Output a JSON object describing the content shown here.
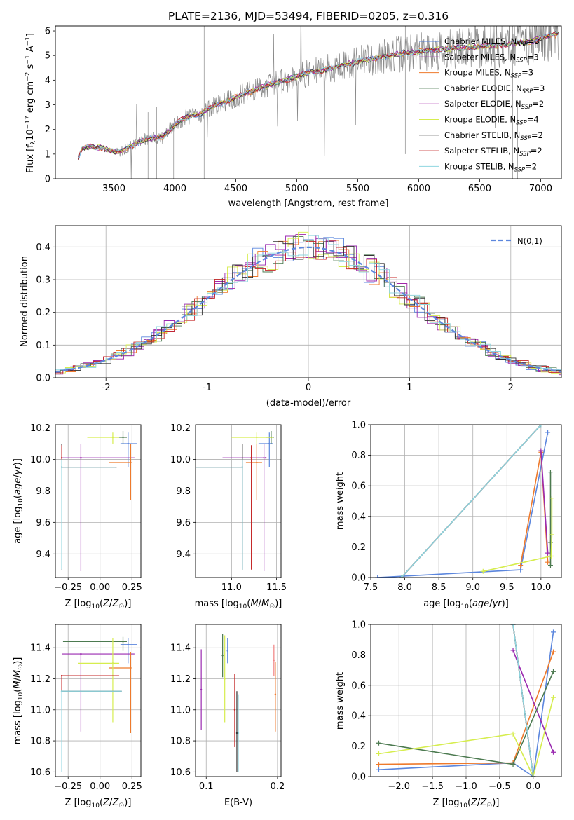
{
  "figure": {
    "title": "PLATE=2136, MJD=53494, FIBERID=0205, z=0.316"
  },
  "series_colors": {
    "Chabrier MILES": "#5b86dd",
    "Salpeter MILES": "#9a2ab0",
    "Kroupa MILES": "#ee7a2c",
    "Chabrier ELODIE": "#4c7a50",
    "Salpeter ELODIE": "#a127a8",
    "Kroupa ELODIE": "#d6ed4e",
    "Chabrier STELIB": "#333333",
    "Salpeter STELIB": "#c42626",
    "Kroupa STELIB": "#8fd6e0",
    "data": "#8a8a8a"
  },
  "chart_data": [
    {
      "type": "line",
      "xlabel": "wavelength [Angstrom, rest frame]",
      "ylabel": "Flux [f_λ 10^-17 erg cm^-2 s^-1 A^-1]",
      "xlim": [
        3020,
        7170
      ],
      "ylim": [
        0,
        6.2
      ],
      "xticks": [
        3500,
        4000,
        4500,
        5000,
        5500,
        6000,
        6500,
        7000
      ],
      "yticks": [
        0,
        1,
        2,
        3,
        4,
        5,
        6
      ],
      "grid": false,
      "legend_position": "top-right",
      "legend": [
        {
          "label": "Chabrier MILES, N",
          "sub": "SSP",
          "tail": "=3"
        },
        {
          "label": "Salpeter MILES, N",
          "sub": "SSP",
          "tail": "=3"
        },
        {
          "label": "Kroupa MILES, N",
          "sub": "SSP",
          "tail": "=3"
        },
        {
          "label": "Chabrier ELODIE, N",
          "sub": "SSP",
          "tail": "=3"
        },
        {
          "label": "Salpeter ELODIE, N",
          "sub": "SSP",
          "tail": "=2"
        },
        {
          "label": "Kroupa ELODIE, N",
          "sub": "SSP",
          "tail": "=4"
        },
        {
          "label": "Chabrier STELIB, N",
          "sub": "SSP",
          "tail": "=2"
        },
        {
          "label": "Salpeter STELIB, N",
          "sub": "SSP",
          "tail": "=2"
        },
        {
          "label": "Kroupa STELIB, N",
          "sub": "SSP",
          "tail": "=2"
        }
      ],
      "continuum": {
        "x": [
          3210,
          3240,
          3300,
          3400,
          3500,
          3550,
          3650,
          3750,
          3900,
          4000,
          4100,
          4200,
          4300,
          4500,
          4700,
          4900,
          5100,
          5300,
          5500,
          5700,
          5900,
          6100,
          6300,
          6500,
          6700,
          6900,
          7000,
          7100
        ],
        "y": [
          0.85,
          1.25,
          1.3,
          1.25,
          1.08,
          1.1,
          1.35,
          1.6,
          1.7,
          2.2,
          2.5,
          2.6,
          2.9,
          3.3,
          3.7,
          4.0,
          4.3,
          4.5,
          4.75,
          4.95,
          5.1,
          5.2,
          5.3,
          5.35,
          5.45,
          5.55,
          5.7,
          5.85
        ]
      }
    },
    {
      "type": "line",
      "xlabel": "(data-model)/error",
      "ylabel": "Normed distribution",
      "xlim": [
        -2.5,
        2.5
      ],
      "ylim": [
        0,
        0.465
      ],
      "xticks": [
        -2,
        -1,
        0,
        1,
        2
      ],
      "yticks": [
        0.0,
        0.1,
        0.2,
        0.3,
        0.4
      ],
      "grid": true,
      "legend_position": "top-right",
      "legend": [
        "N(0,1)"
      ],
      "gaussian": {
        "mean": 0,
        "sigma": 1
      },
      "bin_width": 0.1
    },
    {
      "type": "scatter",
      "xlabel": "Z [log10(Z/Z☉)]",
      "ylabel": "age [log10(age/yr)]",
      "xlim": [
        -0.35,
        0.32
      ],
      "ylim": [
        9.25,
        10.22
      ],
      "xticks": [
        -0.25,
        0.0,
        0.25
      ],
      "xticklabels": [
        "−0.25",
        "0.00",
        "0.25"
      ],
      "yticks": [
        9.4,
        9.6,
        9.8,
        10.0,
        10.2
      ],
      "grid": true,
      "points": [
        {
          "c": "#5b86dd",
          "x": 0.22,
          "y": 10.1,
          "xerr": [
            0.06,
            0.07
          ],
          "yerr": [
            0.15,
            0.07
          ]
        },
        {
          "c": "#9a2ab0",
          "x": -0.15,
          "y": 10.01,
          "xerr": [
            0.15,
            0.42
          ],
          "yerr": [
            0.72,
            0.09
          ]
        },
        {
          "c": "#ee7a2c",
          "x": 0.24,
          "y": 9.98,
          "xerr": [
            0.17,
            0.0
          ],
          "yerr": [
            0.24,
            0.12
          ]
        },
        {
          "c": "#4c7a50",
          "x": 0.18,
          "y": 10.14,
          "xerr": [
            0.03,
            0.03
          ],
          "yerr": [
            0.04,
            0.04
          ]
        },
        {
          "c": "#a127a8",
          "x": -0.15,
          "y": 10.01,
          "xerr": [
            0.0,
            0.0
          ],
          "yerr": [
            0.0,
            0.0
          ]
        },
        {
          "c": "#d6ed4e",
          "x": 0.1,
          "y": 10.14,
          "xerr": [
            0.2,
            0.05
          ],
          "yerr": [
            0.04,
            0.03
          ]
        },
        {
          "c": "#333333",
          "x": -0.3,
          "y": 9.95,
          "xerr": [
            0.0,
            0.43
          ],
          "yerr": [
            0.65,
            0.15
          ]
        },
        {
          "c": "#c42626",
          "x": -0.3,
          "y": 10.01,
          "xerr": [
            0.0,
            0.0
          ],
          "yerr": [
            0.71,
            0.08
          ]
        },
        {
          "c": "#8fd6e0",
          "x": -0.3,
          "y": 9.95,
          "xerr": [
            0.0,
            0.42
          ],
          "yerr": [
            0.65,
            0.05
          ]
        }
      ]
    },
    {
      "type": "scatter",
      "xlabel": "mass [log10(M/M☉)]",
      "ylabel": "",
      "xlim": [
        10.6,
        11.55
      ],
      "ylim": [
        9.25,
        10.22
      ],
      "xticks": [
        11.0,
        11.5
      ],
      "xticklabels": [
        "11.0",
        "11.5"
      ],
      "yticks": [
        9.4,
        9.6,
        9.8,
        10.0,
        10.2
      ],
      "grid": true,
      "points": [
        {
          "c": "#5b86dd",
          "x": 11.42,
          "y": 10.1,
          "xerr": [
            0.12,
            0.04
          ],
          "yerr": [
            0.15,
            0.07
          ]
        },
        {
          "c": "#9a2ab0",
          "x": 11.36,
          "y": 10.01,
          "xerr": [
            0.46,
            0.0
          ],
          "yerr": [
            0.72,
            0.09
          ]
        },
        {
          "c": "#ee7a2c",
          "x": 11.28,
          "y": 9.98,
          "xerr": [
            0.12,
            0.06
          ],
          "yerr": [
            0.24,
            0.12
          ]
        },
        {
          "c": "#4c7a50",
          "x": 11.44,
          "y": 10.14,
          "xerr": [
            0.06,
            0.03
          ],
          "yerr": [
            0.04,
            0.04
          ]
        },
        {
          "c": "#a127a8",
          "x": 11.38,
          "y": 10.01,
          "xerr": [
            0.0,
            0.0
          ],
          "yerr": [
            0.0,
            0.0
          ]
        },
        {
          "c": "#d6ed4e",
          "x": 11.28,
          "y": 10.14,
          "xerr": [
            0.28,
            0.18
          ],
          "yerr": [
            0.04,
            0.03
          ]
        },
        {
          "c": "#333333",
          "x": 11.12,
          "y": 9.95,
          "xerr": [
            0.52,
            0.0
          ],
          "yerr": [
            0.65,
            0.15
          ]
        },
        {
          "c": "#c42626",
          "x": 11.22,
          "y": 10.01,
          "xerr": [
            0.0,
            0.0
          ],
          "yerr": [
            0.71,
            0.08
          ]
        },
        {
          "c": "#8fd6e0",
          "x": 11.12,
          "y": 9.95,
          "xerr": [
            0.52,
            0.0
          ],
          "yerr": [
            0.65,
            0.05
          ]
        }
      ]
    },
    {
      "type": "line",
      "xlabel": "age [log10(age/yr)]",
      "ylabel": "mass weight",
      "xlim": [
        7.5,
        10.3
      ],
      "ylim": [
        0,
        1
      ],
      "xticks": [
        7.5,
        8.0,
        8.5,
        9.0,
        9.5,
        10.0
      ],
      "yticks": [
        0.0,
        0.2,
        0.4,
        0.6,
        0.8,
        1.0
      ],
      "grid": true,
      "series": [
        {
          "c": "#5b86dd",
          "x": [
            7.6,
            9.7,
            10.1
          ],
          "y": [
            0.0,
            0.05,
            0.95
          ]
        },
        {
          "c": "#ee7a2c",
          "x": [
            9.7,
            10.0,
            10.1
          ],
          "y": [
            0.08,
            0.82,
            0.1
          ]
        },
        {
          "c": "#9a2ab0",
          "x": [
            10.0,
            10.1
          ],
          "y": [
            0.83,
            0.16
          ]
        },
        {
          "c": "#4c7a50",
          "x": [
            10.14,
            10.14,
            10.14
          ],
          "y": [
            0.69,
            0.23,
            0.08
          ]
        },
        {
          "c": "#d6ed4e",
          "x": [
            9.15,
            10.15,
            10.16,
            10.16
          ],
          "y": [
            0.04,
            0.14,
            0.28,
            0.52
          ]
        },
        {
          "c": "#c42626",
          "x": [
            7.95,
            10.0
          ],
          "y": [
            0.0,
            1.0
          ]
        },
        {
          "c": "#333333",
          "x": [
            7.95,
            10.0
          ],
          "y": [
            0.0,
            1.0
          ]
        },
        {
          "c": "#8fd6e0",
          "x": [
            7.95,
            10.0
          ],
          "y": [
            0.0,
            1.0
          ]
        }
      ]
    },
    {
      "type": "scatter",
      "xlabel": "Z [log10(Z/Z☉)]",
      "ylabel": "mass [log10(M/M☉)]",
      "xlim": [
        -0.35,
        0.32
      ],
      "ylim": [
        10.57,
        11.55
      ],
      "xticks": [
        -0.25,
        0.0,
        0.25
      ],
      "xticklabels": [
        "−0.25",
        "0.00",
        "0.25"
      ],
      "yticks": [
        10.6,
        10.8,
        11.0,
        11.2,
        11.4
      ],
      "grid": true,
      "points": [
        {
          "c": "#5b86dd",
          "x": 0.22,
          "y": 11.42,
          "xerr": [
            0.06,
            0.07
          ],
          "yerr": [
            0.12,
            0.04
          ]
        },
        {
          "c": "#9a2ab0",
          "x": -0.15,
          "y": 11.36,
          "xerr": [
            0.15,
            0.42
          ],
          "yerr": [
            0.5,
            0.0
          ]
        },
        {
          "c": "#ee7a2c",
          "x": 0.24,
          "y": 11.27,
          "xerr": [
            0.17,
            0.0
          ],
          "yerr": [
            0.42,
            0.1
          ]
        },
        {
          "c": "#4c7a50",
          "x": 0.18,
          "y": 11.44,
          "xerr": [
            0.47,
            0.03
          ],
          "yerr": [
            0.06,
            0.03
          ]
        },
        {
          "c": "#d6ed4e",
          "x": 0.1,
          "y": 11.3,
          "xerr": [
            0.27,
            0.05
          ],
          "yerr": [
            0.38,
            0.16
          ]
        },
        {
          "c": "#333333",
          "x": -0.3,
          "y": 11.12,
          "xerr": [
            0.0,
            0.47
          ],
          "yerr": [
            0.52,
            0.0
          ]
        },
        {
          "c": "#c42626",
          "x": -0.3,
          "y": 11.22,
          "xerr": [
            0.0,
            0.45
          ],
          "yerr": [
            0.6,
            0.0
          ]
        },
        {
          "c": "#8fd6e0",
          "x": -0.3,
          "y": 11.12,
          "xerr": [
            0.0,
            0.47
          ],
          "yerr": [
            0.52,
            0.0
          ]
        }
      ]
    },
    {
      "type": "scatter",
      "xlabel": "E(B-V)",
      "ylabel": "",
      "xlim": [
        0.085,
        0.205
      ],
      "ylim": [
        10.57,
        11.55
      ],
      "xticks": [
        0.1,
        0.2
      ],
      "xticklabels": [
        "0.1",
        "0.2"
      ],
      "yticks": [
        10.6,
        10.8,
        11.0,
        11.2,
        11.4
      ],
      "grid": true,
      "points": [
        {
          "c": "#5b86dd",
          "x": 0.13,
          "y": 11.38,
          "xerr": [
            0,
            0
          ],
          "yerr": [
            0.08,
            0.08
          ]
        },
        {
          "c": "#9a2ab0",
          "x": 0.093,
          "y": 11.13,
          "xerr": [
            0,
            0
          ],
          "yerr": [
            0.26,
            0.26
          ]
        },
        {
          "c": "#ee7a2c",
          "x": 0.197,
          "y": 11.1,
          "xerr": [
            0,
            0
          ],
          "yerr": [
            0.24,
            0.21
          ]
        },
        {
          "c": "#4c7a50",
          "x": 0.123,
          "y": 11.35,
          "xerr": [
            0,
            0
          ],
          "yerr": [
            0.14,
            0.14
          ]
        },
        {
          "c": "#d6ed4e",
          "x": 0.126,
          "y": 11.2,
          "xerr": [
            0,
            0
          ],
          "yerr": [
            0.28,
            0.28
          ]
        },
        {
          "c": "#333333",
          "x": 0.143,
          "y": 10.85,
          "xerr": [
            0,
            0
          ],
          "yerr": [
            0.25,
            0.27
          ]
        },
        {
          "c": "#c42626",
          "x": 0.14,
          "y": 11.0,
          "xerr": [
            0,
            0
          ],
          "yerr": [
            0.24,
            0.23
          ]
        },
        {
          "c": "#8fd6e0",
          "x": 0.145,
          "y": 10.85,
          "xerr": [
            0,
            0
          ],
          "yerr": [
            0.25,
            0.25
          ]
        },
        {
          "c": "#f08080",
          "x": 0.195,
          "y": 11.32,
          "xerr": [
            0,
            0
          ],
          "yerr": [
            0.1,
            0.1
          ]
        }
      ]
    },
    {
      "type": "line",
      "xlabel": "Z [log10(Z/Z☉)]",
      "ylabel": "mass weight",
      "xlim": [
        -2.42,
        0.42
      ],
      "ylim": [
        0,
        1
      ],
      "xticks": [
        -2.0,
        -1.5,
        -1.0,
        -0.5,
        0.0
      ],
      "xticklabels": [
        "−2.0",
        "−1.5",
        "−1.0",
        "−0.5",
        "0.0"
      ],
      "yticks": [
        0.0,
        0.2,
        0.4,
        0.6,
        0.8,
        1.0
      ],
      "grid": true,
      "series": [
        {
          "c": "#5b86dd",
          "x": [
            -2.3,
            -0.3,
            0.0,
            0.3
          ],
          "y": [
            0.045,
            0.09,
            0.0,
            0.95
          ]
        },
        {
          "c": "#ee7a2c",
          "x": [
            -2.3,
            -0.3,
            0.3
          ],
          "y": [
            0.08,
            0.09,
            0.82
          ]
        },
        {
          "c": "#9a2ab0",
          "x": [
            -0.3,
            0.3
          ],
          "y": [
            0.83,
            0.16
          ]
        },
        {
          "c": "#4c7a50",
          "x": [
            -2.3,
            -0.3,
            0.3
          ],
          "y": [
            0.22,
            0.08,
            0.69
          ]
        },
        {
          "c": "#d6ed4e",
          "x": [
            -2.3,
            -0.3,
            0.0,
            0.3
          ],
          "y": [
            0.15,
            0.28,
            0.0,
            0.52
          ]
        },
        {
          "c": "#c42626",
          "x": [
            -0.3,
            0.0
          ],
          "y": [
            1.0,
            0.0
          ]
        },
        {
          "c": "#333333",
          "x": [
            -0.3,
            0.0
          ],
          "y": [
            1.0,
            0.0
          ]
        },
        {
          "c": "#8fd6e0",
          "x": [
            -0.3,
            0.0
          ],
          "y": [
            1.0,
            0.0
          ]
        }
      ]
    }
  ]
}
